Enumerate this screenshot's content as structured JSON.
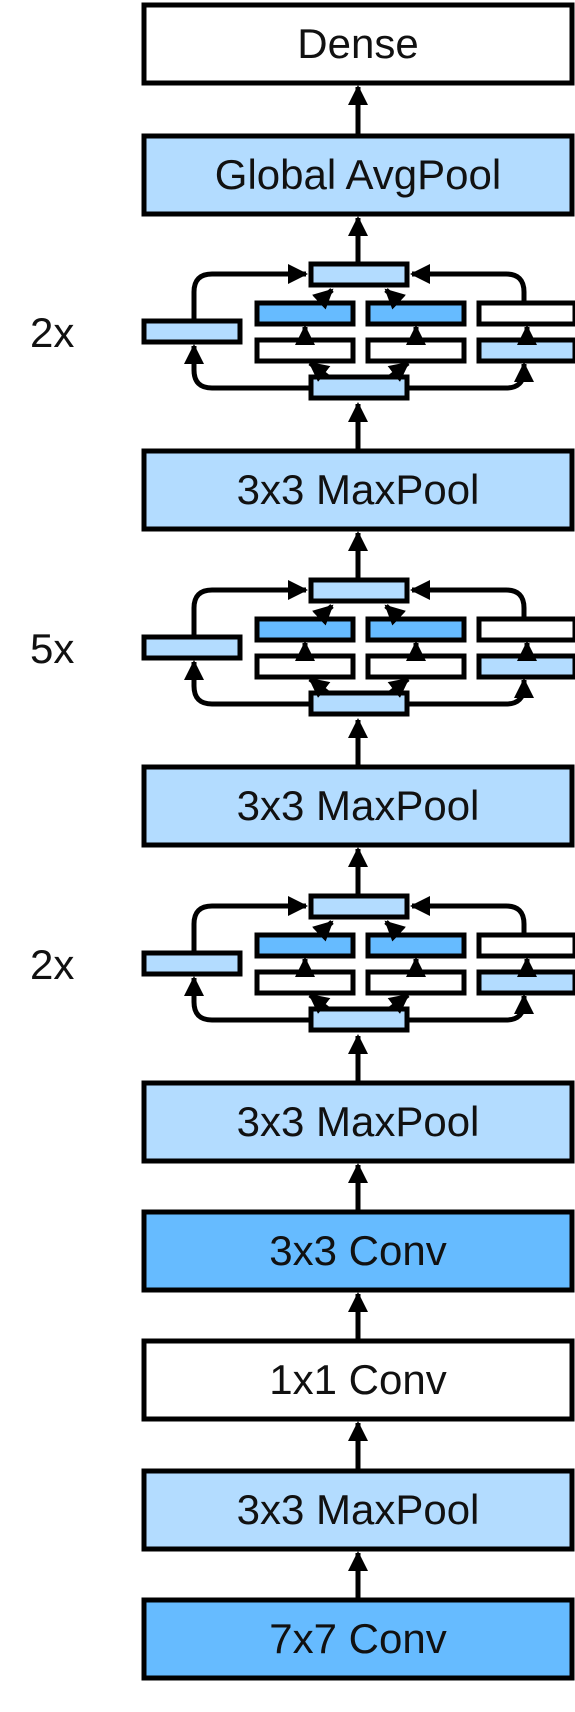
{
  "colors": {
    "white": "#ffffff",
    "light_blue": "#b3dcff",
    "mid_blue": "#66bbff",
    "stroke": "#000000"
  },
  "diagram": {
    "layers": [
      {
        "label": "Dense",
        "fill": "white"
      },
      {
        "label": "Global AvgPool",
        "fill": "light_blue"
      },
      {
        "label": "3x3 MaxPool",
        "fill": "light_blue"
      },
      {
        "label": "3x3 MaxPool",
        "fill": "light_blue"
      },
      {
        "label": "3x3 MaxPool",
        "fill": "light_blue"
      },
      {
        "label": "3x3 Conv",
        "fill": "mid_blue"
      },
      {
        "label": "1x1 Conv",
        "fill": "white"
      },
      {
        "label": "3x3 MaxPool",
        "fill": "light_blue"
      },
      {
        "label": "7x7 Conv",
        "fill": "mid_blue"
      }
    ],
    "inception_groups": [
      {
        "repeat": "2x"
      },
      {
        "repeat": "5x"
      },
      {
        "repeat": "2x"
      }
    ]
  }
}
